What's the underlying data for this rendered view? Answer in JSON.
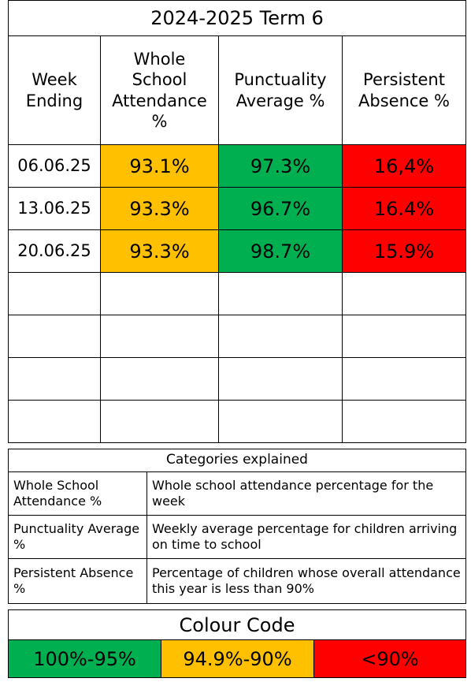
{
  "title": "2024-2025 Term 6",
  "table": {
    "headers": [
      "Week Ending",
      "Whole School Attendance %",
      "Punctuality Average %",
      "Persistent Absence %"
    ],
    "rows": [
      [
        "06.06.25",
        "93.1%",
        "97.3%",
        "16,4%"
      ],
      [
        "13.06.25",
        "93.3%",
        "96.7%",
        "16.4%"
      ],
      [
        "20.06.25",
        "93.3%",
        "98.7%",
        "15.9%"
      ]
    ]
  },
  "categories": {
    "title": "Categories explained",
    "rows": [
      [
        "Whole School Attendance %",
        "Whole school attendance percentage for the week"
      ],
      [
        "Punctuality Average %",
        "Weekly average percentage for children arriving on time to school"
      ],
      [
        "Persistent Absence %",
        "Percentage of children whose overall attendance this year is less than 90%"
      ]
    ]
  },
  "colour_code": {
    "title": "Colour Code",
    "items": [
      "100%-95%",
      "94.9%-90%",
      "<90%"
    ]
  }
}
